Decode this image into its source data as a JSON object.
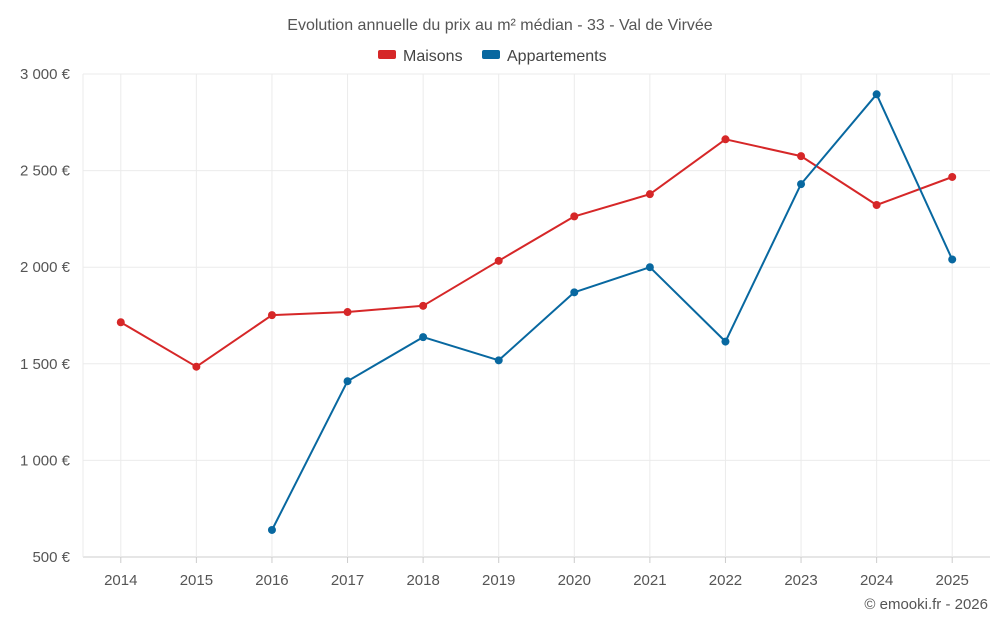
{
  "chart_data": {
    "type": "line",
    "title": "Evolution annuelle du prix au m² médian - 33 - Val de Virvée",
    "categories": [
      "2014",
      "2015",
      "2016",
      "2017",
      "2018",
      "2019",
      "2020",
      "2021",
      "2022",
      "2023",
      "2024",
      "2025"
    ],
    "series": [
      {
        "name": "Maisons",
        "color": "#d62728",
        "values": [
          1715,
          1485,
          1752,
          1768,
          1800,
          2033,
          2263,
          2378,
          2662,
          2575,
          2322,
          2467
        ]
      },
      {
        "name": "Appartements",
        "color": "#0868a0",
        "values": [
          null,
          null,
          640,
          1410,
          1638,
          1518,
          1870,
          2000,
          1615,
          2430,
          2895,
          2040
        ]
      }
    ],
    "ylim": [
      500,
      3000
    ],
    "yticks": [
      500,
      1000,
      1500,
      2000,
      2500,
      3000
    ],
    "ytick_labels": [
      "500 €",
      "1 000 €",
      "1 500 €",
      "2 000 €",
      "2 500 €",
      "3 000 €"
    ],
    "xlabel": "",
    "ylabel": "",
    "grid": true,
    "legend": "top-center"
  },
  "credit": "© emooki.fr - 2026"
}
